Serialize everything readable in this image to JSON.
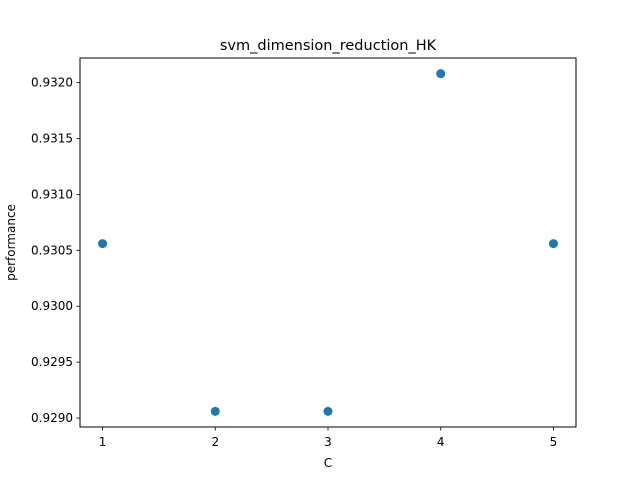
{
  "chart_data": {
    "type": "scatter",
    "title": "svm_dimension_reduction_HK",
    "xlabel": "C",
    "ylabel": "performance",
    "x": [
      1,
      2,
      3,
      4,
      5
    ],
    "y": [
      0.93056,
      0.92906,
      0.92906,
      0.93208,
      0.93056
    ],
    "xlim": [
      0.8,
      5.2
    ],
    "ylim": [
      0.92892,
      0.93222
    ],
    "xticks": [
      1,
      2,
      3,
      4,
      5
    ],
    "xtick_labels": [
      "1",
      "2",
      "3",
      "4",
      "5"
    ],
    "yticks": [
      0.929,
      0.9295,
      0.93,
      0.9305,
      0.931,
      0.9315,
      0.932
    ],
    "ytick_labels": [
      "0.9290",
      "0.9295",
      "0.9300",
      "0.9305",
      "0.9310",
      "0.9315",
      "0.9320"
    ],
    "grid": false,
    "marker_color": "#1f77b4"
  }
}
